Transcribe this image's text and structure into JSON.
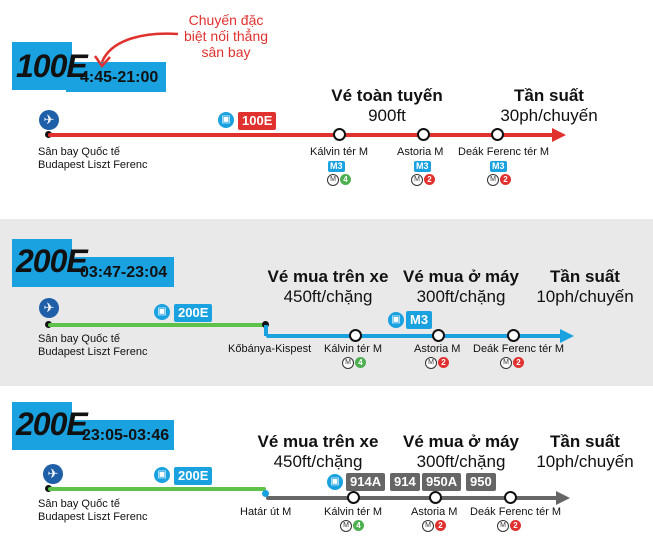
{
  "colors": {
    "red": "#e0312f",
    "blue": "#1aa1e0",
    "green": "#5ec24a",
    "gray": "#666666",
    "airport": "#1e5fa8",
    "m2": "#e0312f",
    "m4": "#4caf50",
    "m3": "#1aa1e0"
  },
  "callout": {
    "line1": "Chuyến đặc",
    "line2": "biệt nối thẳng",
    "line3": "sân bay"
  },
  "sections": [
    {
      "route": "100E",
      "hours": "4:45-21:00",
      "line_badge": "100E",
      "headers": [
        {
          "title": "Vé toàn tuyến",
          "sub": "900ft"
        },
        {
          "title": "Tần suất",
          "sub": "30ph/chuyến"
        }
      ],
      "origin": {
        "line1": "Sân bay Quốc tế",
        "line2": "Budapest Liszt Ferenc"
      },
      "stops": [
        {
          "name": "Kálvin tér M",
          "metro": "M3",
          "n": "4"
        },
        {
          "name": "Astoria M",
          "metro": "M3",
          "n": "2"
        },
        {
          "name": "Deák Ferenc tér M",
          "metro": "M3",
          "n": "2"
        }
      ]
    },
    {
      "route": "200E",
      "hours": "03:47-23:04",
      "line_badge": "200E",
      "transfer_badge": "M3",
      "headers": [
        {
          "title": "Vé mua trên xe",
          "sub": "450ft/chặng"
        },
        {
          "title": "Vé mua ở máy",
          "sub": "300ft/chặng"
        },
        {
          "title": "Tần suất",
          "sub": "10ph/chuyến"
        }
      ],
      "origin": {
        "line1": "Sân bay Quốc tế",
        "line2": "Budapest Liszt Ferenc"
      },
      "transfer": "Kőbánya-Kispest",
      "stops": [
        {
          "name": "Kálvin tér M",
          "n": "4"
        },
        {
          "name": "Astoria M",
          "n": "2"
        },
        {
          "name": "Deák Ferenc tér M",
          "n": "2"
        }
      ]
    },
    {
      "route": "200E",
      "hours": "23:05-03:46",
      "line_badge": "200E",
      "night_badges": [
        "914A",
        "914",
        "950A",
        "950"
      ],
      "headers": [
        {
          "title": "Vé mua trên xe",
          "sub": "450ft/chặng"
        },
        {
          "title": "Vé mua ở máy",
          "sub": "300ft/chặng"
        },
        {
          "title": "Tần suất",
          "sub": "10ph/chuyến"
        }
      ],
      "origin": {
        "line1": "Sân bay Quốc tế",
        "line2": "Budapest Liszt Ferenc"
      },
      "transfer": "Határ út M",
      "stops": [
        {
          "name": "Kálvin tér M",
          "n": "4"
        },
        {
          "name": "Astoria M",
          "n": "2"
        },
        {
          "name": "Deák Ferenc tér M",
          "n": "2"
        }
      ]
    }
  ]
}
